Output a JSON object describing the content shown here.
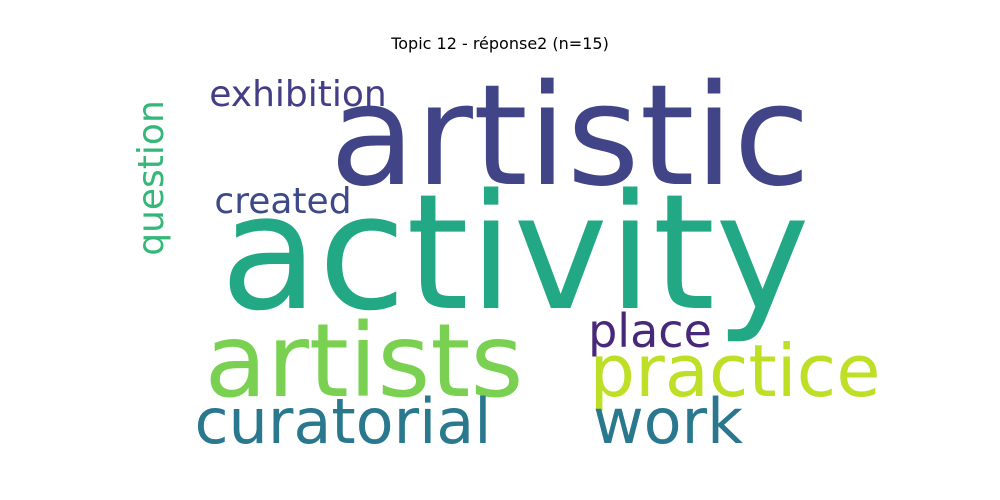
{
  "title": "Topic 12 - réponse2 (n=15)",
  "words": [
    {
      "text": "activity",
      "color": "#22a884"
    },
    {
      "text": "artistic",
      "color": "#414487"
    },
    {
      "text": "artists",
      "color": "#7ad151"
    },
    {
      "text": "practice",
      "color": "#bddf26"
    },
    {
      "text": "curatorial",
      "color": "#2a788e"
    },
    {
      "text": "work",
      "color": "#2a788e"
    },
    {
      "text": "place",
      "color": "#482878"
    },
    {
      "text": "exhibition",
      "color": "#433e85"
    },
    {
      "text": "created",
      "color": "#3e4989"
    },
    {
      "text": "question",
      "color": "#35b779"
    }
  ]
}
